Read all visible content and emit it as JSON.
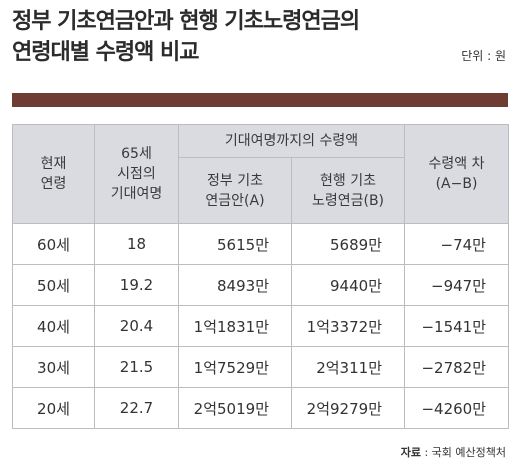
{
  "title_line1": "정부 기초연금안과 현행 기초노령연금의",
  "title_line2": "연령대별 수령액 비교",
  "unit": "단위 : 원",
  "headers": {
    "age": "현재\n연령",
    "life": "65세\n시점의\n기대여명",
    "group": "기대여명까지의 수령액",
    "gov": "정부 기초\n연금안(A)",
    "cur": "현행 기초\n노령연금(B)",
    "diff": "수령액 차\n(A−B)"
  },
  "rows": [
    {
      "age": "60세",
      "life": "18",
      "gov": "5615만",
      "cur": "5689만",
      "diff": "−74만"
    },
    {
      "age": "50세",
      "life": "19.2",
      "gov": "8493만",
      "cur": "9440만",
      "diff": "−947만"
    },
    {
      "age": "40세",
      "life": "20.4",
      "gov": "1억1831만",
      "cur": "1억3372만",
      "diff": "−1541만"
    },
    {
      "age": "30세",
      "life": "21.5",
      "gov": "1억7529만",
      "cur": "2억311만",
      "diff": "−2782만"
    },
    {
      "age": "20세",
      "life": "22.7",
      "gov": "2억5019만",
      "cur": "2억9279만",
      "diff": "−4260만"
    }
  ],
  "source_label": "자료",
  "source_text": " : 국회 예산정책처",
  "colors": {
    "rule": "#6e3c33",
    "header_bg": "#d9dbe0",
    "border": "#bdbdbd"
  }
}
